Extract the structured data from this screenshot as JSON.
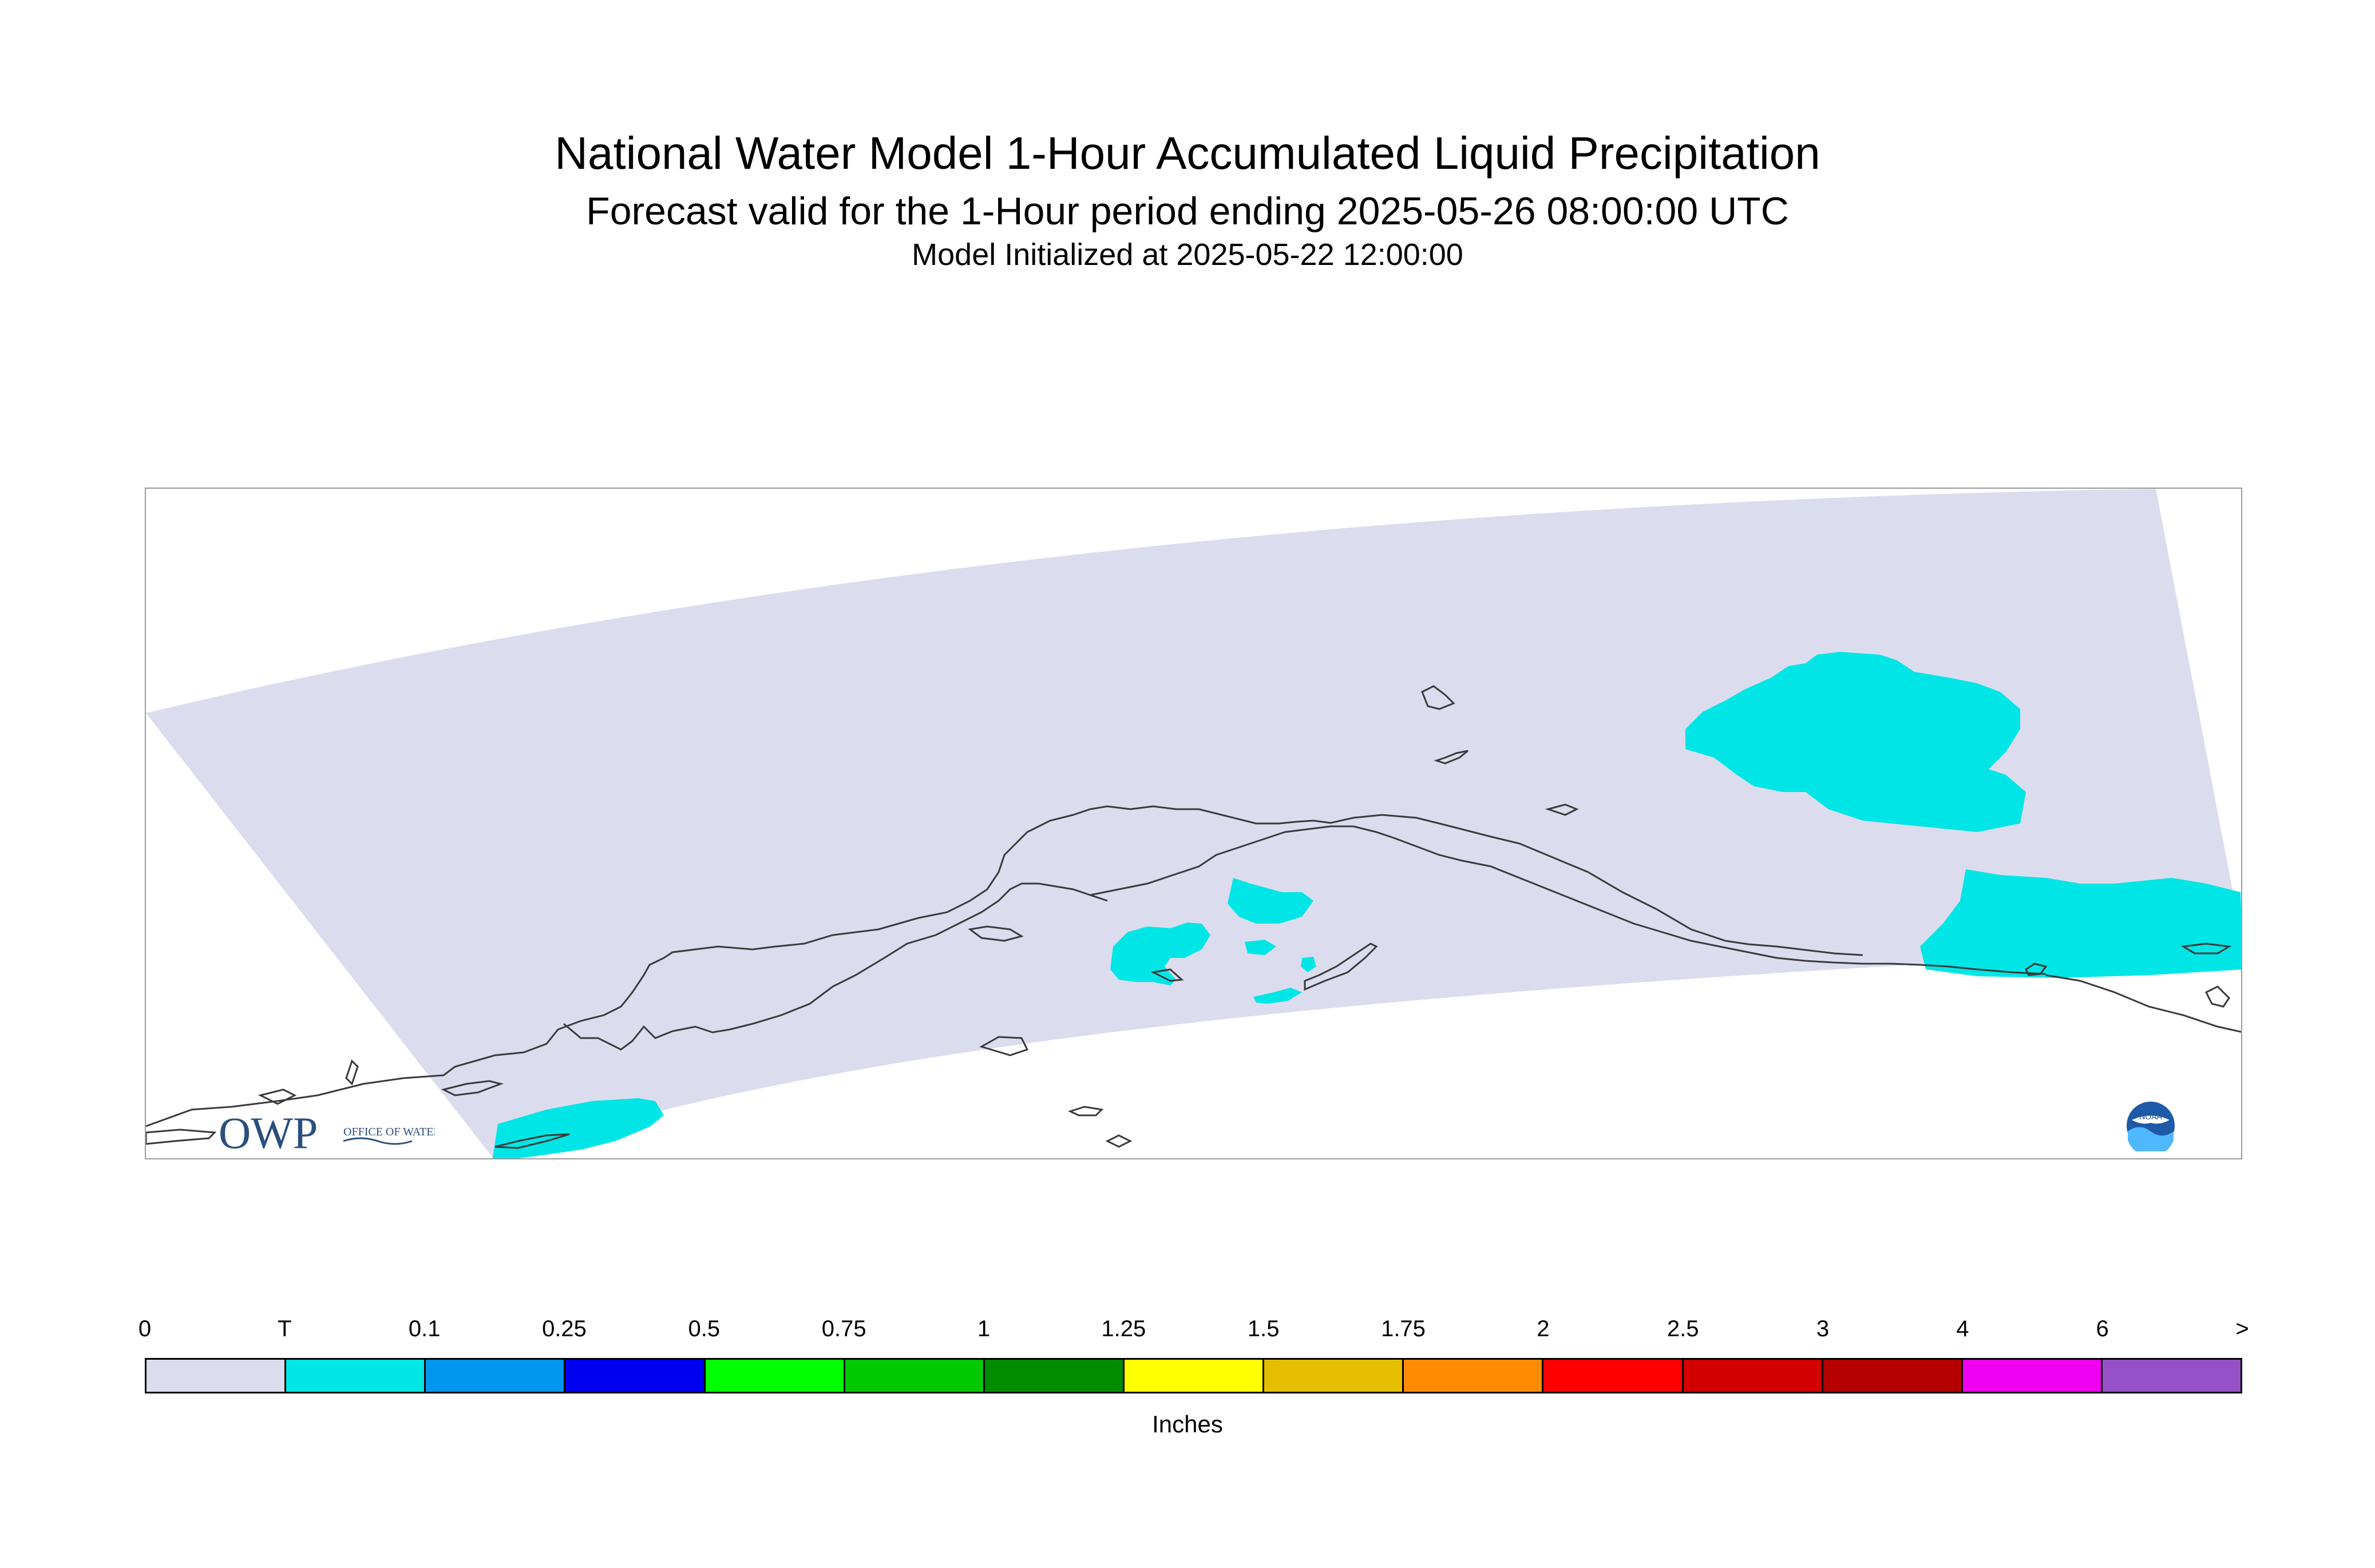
{
  "header": {
    "title": "National Water Model 1-Hour Accumulated Liquid Precipitation",
    "subtitle": "Forecast valid for the 1-Hour period ending 2025-05-26 08:00:00 UTC",
    "init": "Model Initialized at 2025-05-22 12:00:00"
  },
  "map": {
    "region_color": "#dcdcef",
    "precip_color": "#00e6e6",
    "coast_color": "#3a3a3a"
  },
  "logos": {
    "owp_text": "OWP",
    "owp_sub": "OFFICE OF WATER PREDICTION",
    "noaa_text": "NOAA"
  },
  "legend": {
    "labels": [
      "0",
      "T",
      "0.1",
      "0.25",
      "0.5",
      "0.75",
      "1",
      "1.25",
      "1.5",
      "1.75",
      "2",
      "2.5",
      "3",
      "4",
      "6",
      ">"
    ],
    "colors": [
      "#dcdcef",
      "#00e6e6",
      "#0096f0",
      "#0000f0",
      "#00ff00",
      "#00c800",
      "#008c00",
      "#ffff00",
      "#e6be00",
      "#ff8c00",
      "#ff0000",
      "#d20000",
      "#b40000",
      "#f000f0",
      "#9650c8"
    ],
    "units": "Inches"
  }
}
